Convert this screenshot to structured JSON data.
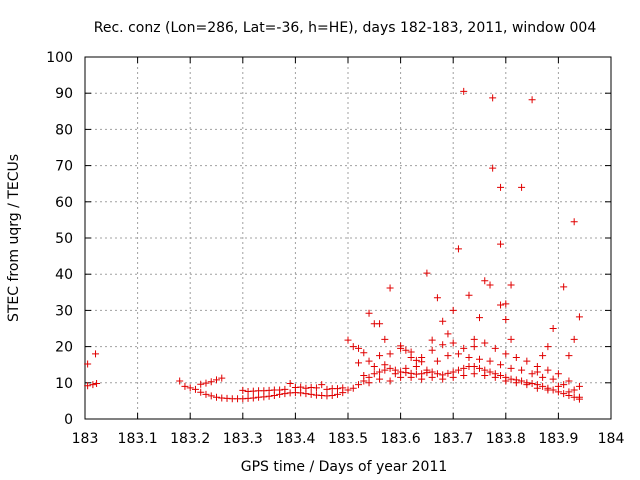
{
  "chart_data": {
    "type": "scatter",
    "title": "Rec. conz (Lon=286, Lat=-36, h=HE), days 182-183, 2011, window 004",
    "xlabel": "GPS time / Days of year 2011",
    "ylabel": "STEC from uqrg / TECUs",
    "xlim": [
      183,
      184
    ],
    "ylim": [
      0,
      100
    ],
    "xticks": [
      "183",
      "183.1",
      "183.2",
      "183.3",
      "183.4",
      "183.5",
      "183.6",
      "183.7",
      "183.8",
      "183.9",
      "184"
    ],
    "yticks": [
      "0",
      "10",
      "20",
      "30",
      "40",
      "50",
      "60",
      "70",
      "80",
      "90",
      "100"
    ],
    "grid": true,
    "marker": "+",
    "color": "#e00000",
    "series": [
      {
        "name": "STEC",
        "points": [
          [
            183.005,
            15.2
          ],
          [
            183.005,
            9.2
          ],
          [
            183.015,
            9.5
          ],
          [
            183.02,
            18.0
          ],
          [
            183.022,
            9.8
          ],
          [
            183.18,
            10.5
          ],
          [
            183.19,
            9.0
          ],
          [
            183.2,
            8.6
          ],
          [
            183.21,
            8.2
          ],
          [
            183.22,
            9.6
          ],
          [
            183.23,
            9.9
          ],
          [
            183.24,
            10.3
          ],
          [
            183.25,
            10.8
          ],
          [
            183.26,
            11.3
          ],
          [
            183.22,
            7.4
          ],
          [
            183.23,
            6.8
          ],
          [
            183.24,
            6.4
          ],
          [
            183.25,
            6.0
          ],
          [
            183.26,
            5.8
          ],
          [
            183.27,
            5.7
          ],
          [
            183.28,
            5.6
          ],
          [
            183.29,
            5.6
          ],
          [
            183.3,
            5.6
          ],
          [
            183.31,
            5.7
          ],
          [
            183.32,
            5.8
          ],
          [
            183.33,
            6.0
          ],
          [
            183.34,
            6.1
          ],
          [
            183.35,
            6.3
          ],
          [
            183.36,
            6.5
          ],
          [
            183.37,
            6.8
          ],
          [
            183.38,
            7.0
          ],
          [
            183.39,
            7.2
          ],
          [
            183.4,
            7.3
          ],
          [
            183.41,
            7.2
          ],
          [
            183.42,
            7.0
          ],
          [
            183.43,
            6.8
          ],
          [
            183.44,
            6.6
          ],
          [
            183.45,
            6.5
          ],
          [
            183.46,
            6.4
          ],
          [
            183.47,
            6.5
          ],
          [
            183.48,
            6.8
          ],
          [
            183.49,
            7.3
          ],
          [
            183.5,
            8.0
          ],
          [
            183.3,
            7.9
          ],
          [
            183.31,
            7.6
          ],
          [
            183.32,
            7.7
          ],
          [
            183.33,
            7.8
          ],
          [
            183.34,
            7.8
          ],
          [
            183.35,
            7.9
          ],
          [
            183.36,
            8.0
          ],
          [
            183.37,
            8.0
          ],
          [
            183.38,
            8.2
          ],
          [
            183.39,
            9.8
          ],
          [
            183.4,
            8.7
          ],
          [
            183.41,
            8.8
          ],
          [
            183.42,
            8.5
          ],
          [
            183.43,
            8.7
          ],
          [
            183.44,
            8.6
          ],
          [
            183.45,
            9.5
          ],
          [
            183.46,
            8.2
          ],
          [
            183.47,
            8.4
          ],
          [
            183.48,
            8.4
          ],
          [
            183.49,
            8.6
          ],
          [
            183.5,
            21.8
          ],
          [
            183.51,
            20.0
          ],
          [
            183.52,
            19.5
          ],
          [
            183.53,
            18.3
          ],
          [
            183.54,
            29.2
          ],
          [
            183.55,
            26.3
          ],
          [
            183.56,
            26.3
          ],
          [
            183.57,
            22.0
          ],
          [
            183.58,
            36.2
          ],
          [
            183.6,
            20.2
          ],
          [
            183.61,
            19.0
          ],
          [
            183.62,
            17.0
          ],
          [
            183.63,
            16.2
          ],
          [
            183.64,
            15.8
          ],
          [
            183.65,
            40.3
          ],
          [
            183.66,
            21.8
          ],
          [
            183.67,
            33.5
          ],
          [
            183.68,
            27.0
          ],
          [
            183.69,
            23.5
          ],
          [
            183.7,
            30.0
          ],
          [
            183.71,
            47.0
          ],
          [
            183.72,
            90.5
          ],
          [
            183.73,
            34.2
          ],
          [
            183.74,
            22.0
          ],
          [
            183.75,
            28.0
          ],
          [
            183.76,
            38.2
          ],
          [
            183.77,
            37.0
          ],
          [
            183.775,
            88.7
          ],
          [
            183.775,
            69.3
          ],
          [
            183.79,
            64.0
          ],
          [
            183.79,
            48.3
          ],
          [
            183.79,
            31.5
          ],
          [
            183.8,
            27.5
          ],
          [
            183.8,
            31.8
          ],
          [
            183.81,
            37.0
          ],
          [
            183.81,
            22.0
          ],
          [
            183.83,
            64.0
          ],
          [
            183.85,
            88.2
          ],
          [
            183.86,
            13.0
          ],
          [
            183.87,
            17.5
          ],
          [
            183.88,
            20.0
          ],
          [
            183.89,
            25.0
          ],
          [
            183.91,
            36.5
          ],
          [
            183.92,
            17.5
          ],
          [
            183.93,
            54.5
          ],
          [
            183.93,
            22.0
          ],
          [
            183.94,
            28.2
          ],
          [
            183.51,
            8.5
          ],
          [
            183.52,
            9.5
          ],
          [
            183.53,
            10.5
          ],
          [
            183.54,
            11.5
          ],
          [
            183.55,
            12.5
          ],
          [
            183.56,
            13.0
          ],
          [
            183.57,
            13.5
          ],
          [
            183.58,
            14.0
          ],
          [
            183.59,
            13.5
          ],
          [
            183.6,
            13.0
          ],
          [
            183.61,
            12.8
          ],
          [
            183.62,
            12.6
          ],
          [
            183.63,
            12.4
          ],
          [
            183.64,
            12.5
          ],
          [
            183.65,
            12.8
          ],
          [
            183.66,
            13.0
          ],
          [
            183.67,
            12.5
          ],
          [
            183.68,
            12.2
          ],
          [
            183.69,
            12.6
          ],
          [
            183.7,
            13.0
          ],
          [
            183.71,
            13.5
          ],
          [
            183.72,
            14.0
          ],
          [
            183.73,
            14.5
          ],
          [
            183.74,
            14.5
          ],
          [
            183.75,
            14.0
          ],
          [
            183.76,
            13.5
          ],
          [
            183.77,
            13.0
          ],
          [
            183.78,
            12.5
          ],
          [
            183.79,
            12.0
          ],
          [
            183.8,
            11.5
          ],
          [
            183.81,
            11.0
          ],
          [
            183.82,
            10.8
          ],
          [
            183.83,
            10.5
          ],
          [
            183.84,
            10.0
          ],
          [
            183.85,
            9.8
          ],
          [
            183.86,
            9.5
          ],
          [
            183.87,
            9.0
          ],
          [
            183.88,
            8.5
          ],
          [
            183.89,
            8.0
          ],
          [
            183.9,
            7.5
          ],
          [
            183.91,
            7.0
          ],
          [
            183.92,
            6.5
          ],
          [
            183.93,
            6.0
          ],
          [
            183.94,
            5.5
          ],
          [
            183.52,
            15.5
          ],
          [
            183.54,
            16.0
          ],
          [
            183.56,
            17.5
          ],
          [
            183.58,
            18.0
          ],
          [
            183.6,
            19.5
          ],
          [
            183.62,
            18.5
          ],
          [
            183.64,
            17.0
          ],
          [
            183.66,
            19.0
          ],
          [
            183.68,
            20.5
          ],
          [
            183.7,
            21.0
          ],
          [
            183.72,
            19.5
          ],
          [
            183.74,
            20.0
          ],
          [
            183.76,
            21.0
          ],
          [
            183.78,
            19.5
          ],
          [
            183.8,
            18.0
          ],
          [
            183.82,
            17.0
          ],
          [
            183.84,
            16.0
          ],
          [
            183.86,
            14.5
          ],
          [
            183.88,
            13.5
          ],
          [
            183.9,
            12.5
          ],
          [
            183.92,
            10.5
          ],
          [
            183.94,
            9.0
          ],
          [
            183.53,
            12.0
          ],
          [
            183.55,
            14.5
          ],
          [
            183.57,
            15.0
          ],
          [
            183.59,
            12.5
          ],
          [
            183.61,
            14.0
          ],
          [
            183.63,
            14.5
          ],
          [
            183.65,
            13.5
          ],
          [
            183.67,
            16.0
          ],
          [
            183.69,
            17.5
          ],
          [
            183.71,
            18.0
          ],
          [
            183.73,
            17.0
          ],
          [
            183.75,
            16.5
          ],
          [
            183.77,
            16.0
          ],
          [
            183.79,
            15.0
          ],
          [
            183.81,
            14.0
          ],
          [
            183.83,
            13.5
          ],
          [
            183.85,
            12.5
          ],
          [
            183.87,
            11.5
          ],
          [
            183.89,
            11.0
          ],
          [
            183.91,
            9.5
          ],
          [
            183.93,
            8.0
          ],
          [
            183.54,
            10.0
          ],
          [
            183.56,
            11.0
          ],
          [
            183.58,
            10.5
          ],
          [
            183.6,
            11.5
          ],
          [
            183.62,
            11.5
          ],
          [
            183.64,
            11.0
          ],
          [
            183.66,
            11.5
          ],
          [
            183.68,
            11.0
          ],
          [
            183.7,
            11.5
          ],
          [
            183.72,
            12.0
          ],
          [
            183.74,
            12.5
          ],
          [
            183.76,
            12.0
          ],
          [
            183.78,
            11.5
          ],
          [
            183.8,
            10.5
          ],
          [
            183.82,
            10.0
          ],
          [
            183.84,
            9.5
          ],
          [
            183.86,
            8.5
          ],
          [
            183.88,
            8.0
          ],
          [
            183.9,
            9.0
          ],
          [
            183.92,
            7.5
          ],
          [
            183.94,
            6.0
          ]
        ]
      }
    ]
  }
}
